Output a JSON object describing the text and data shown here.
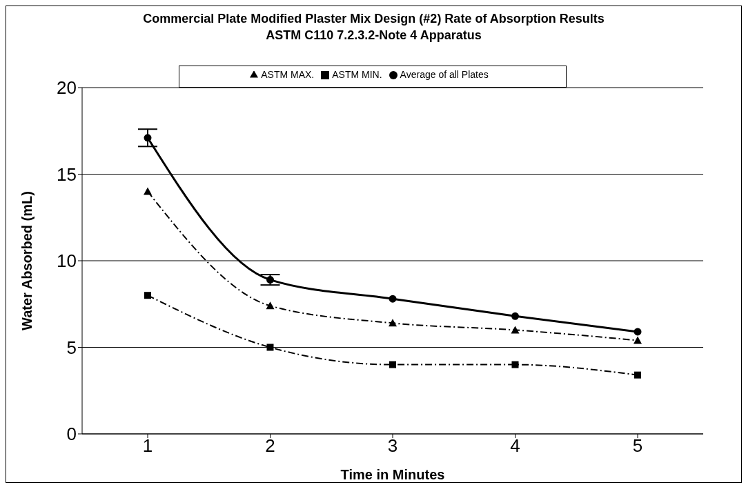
{
  "chart_data": {
    "type": "line",
    "title": "Commercial Plate Modified Plaster Mix Design (#2) Rate of Absorption Results",
    "subtitle": "ASTM C110 7.2.3.2-Note 4 Apparatus",
    "xlabel": "Time in Minutes",
    "ylabel": "Water Absorbed (mL)",
    "categories": [
      "1",
      "2",
      "3",
      "4",
      "5"
    ],
    "series": [
      {
        "name": "ASTM MAX.",
        "color": "#000000",
        "values": [
          14,
          7.4,
          6.4,
          6,
          5.4
        ],
        "marker": "triangle",
        "line_style": "dashed"
      },
      {
        "name": "ASTM MIN.",
        "color": "#000000",
        "values": [
          8,
          5,
          4,
          4,
          3.4
        ],
        "marker": "square",
        "line_style": "dashed"
      },
      {
        "name": "Average of all Plates",
        "color": "#000000",
        "values": [
          17.1,
          8.9,
          7.8,
          6.8,
          5.9
        ],
        "marker": "circle",
        "line_style": "solid",
        "errors": [
          0.5,
          0.3,
          null,
          null,
          null
        ]
      }
    ],
    "ylim": [
      0,
      20
    ],
    "yticks": [
      0,
      5,
      10,
      15,
      20
    ],
    "grid": "y",
    "legend": "top"
  }
}
